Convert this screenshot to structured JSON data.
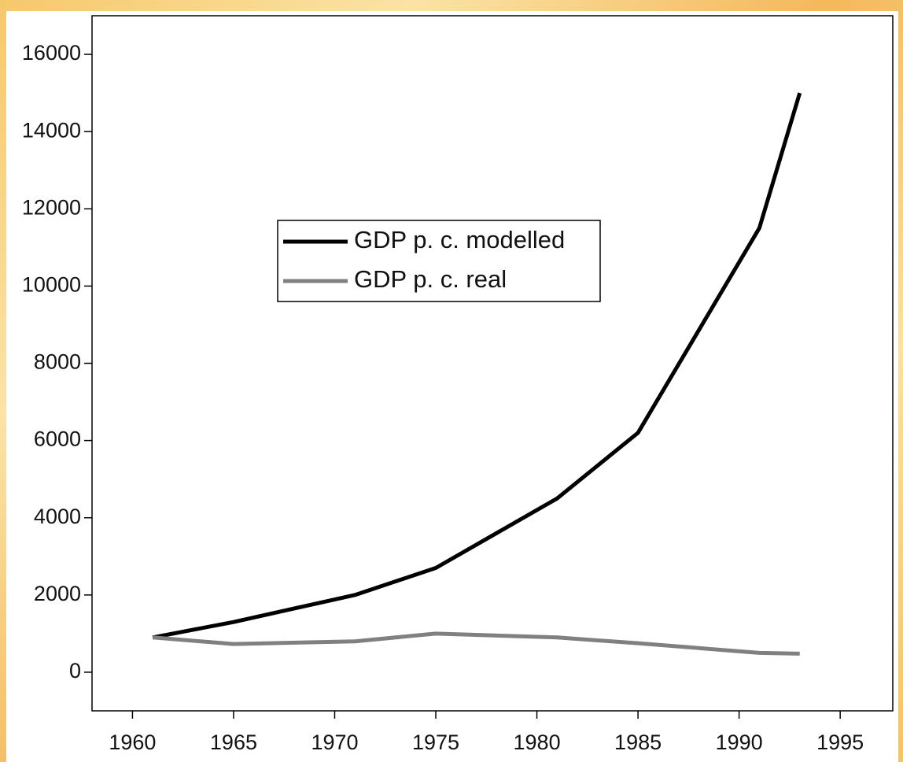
{
  "chart_data": {
    "type": "line",
    "x": [
      1961,
      1965,
      1971,
      1975,
      1981,
      1985,
      1991,
      1993
    ],
    "series": [
      {
        "name": "GDP p. c. modelled",
        "color": "#000000",
        "values": [
          900,
          1300,
          2000,
          2700,
          4500,
          6200,
          11500,
          15000
        ]
      },
      {
        "name": "GDP p. c. real",
        "color": "#808080",
        "values": [
          900,
          730,
          800,
          1000,
          900,
          750,
          500,
          480
        ]
      }
    ],
    "xlim": [
      1958,
      1997.6
    ],
    "xticks": [
      1960,
      1965,
      1970,
      1975,
      1980,
      1985,
      1990,
      1995
    ],
    "ylim": [
      -1000,
      17000
    ],
    "yticks": [
      0,
      2000,
      4000,
      6000,
      8000,
      10000,
      12000,
      14000,
      16000
    ]
  }
}
